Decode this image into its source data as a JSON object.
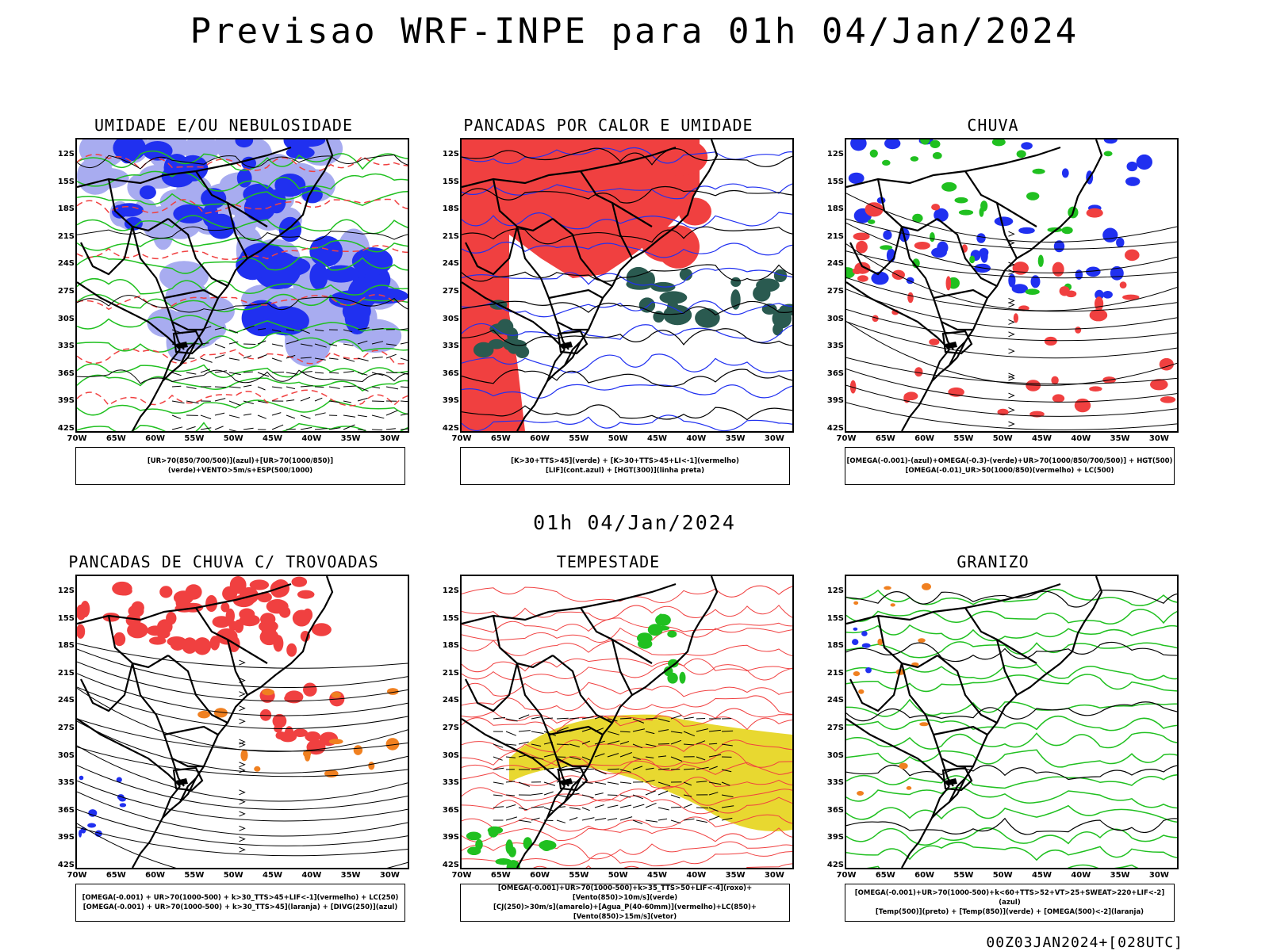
{
  "main_title": "Previsao WRF-INPE  para 01h 04/Jan/2024",
  "mid_title": "01h 04/Jan/2024",
  "footer_stamp": "00Z03JAN2024+[028UTC]",
  "axis": {
    "lat_ticks": [
      "12S",
      "15S",
      "18S",
      "21S",
      "24S",
      "27S",
      "30S",
      "33S",
      "36S",
      "39S",
      "42S"
    ],
    "lon_ticks": [
      "70W",
      "65W",
      "60W",
      "55W",
      "50W",
      "45W",
      "40W",
      "35W",
      "30W"
    ]
  },
  "colors": {
    "red": "#f04040",
    "green": "#20c020",
    "blue": "#2030f0",
    "lightblue": "#a8acf0",
    "orange": "#f08020",
    "yellow": "#e8d830",
    "darkgreen": "#2a5a50"
  },
  "panels": [
    {
      "title": "UMIDADE E/OU NEBULOSIDADE",
      "legend": [
        "[UR>70(850/700/500)](azul)+[UR>70(1000/850)](verde)+VENTO>5m/s+ESP(500/1000)"
      ]
    },
    {
      "title": "PANCADAS POR CALOR E UMIDADE",
      "legend": [
        "[K>30+TTS>45](verde) + [K>30+TTS>45+LI<-1](vermelho)",
        "[LIF](cont.azul) + [HGT(300)](linha preta)"
      ]
    },
    {
      "title": "CHUVA",
      "legend": [
        "[OMEGA(-0.001)-(azul)+OMEGA(-0.3)-(verde)+UR>70(1000/850/700/500)] + HGT(500)",
        "[OMEGA(-0.01)_UR>50(1000/850)(vermelho) + LC(500)"
      ]
    },
    {
      "title": "PANCADAS DE CHUVA C/ TROVOADAS",
      "legend": [
        "[OMEGA(-0.001) + UR>70(1000-500) + k>30_TTS>45+LIF<-1](vermelho) + LC(250)",
        "[OMEGA(-0.001) + UR>70(1000-500) + k>30_TTS>45](laranja) + [DIVG(250)](azul)"
      ]
    },
    {
      "title": "TEMPESTADE",
      "legend": [
        "[OMEGA(-0.001)+UR>70(1000-500)+k>35_TTS>50+LIF<-4](roxo)+[Vento(850)>10m/s](verde)",
        "[CJ(250)>30m/s](amarelo)+[Agua_P(40-60mm)](vermelho)+LC(850)+[Vento(850)>15m/s](vetor)"
      ]
    },
    {
      "title": "GRANIZO",
      "legend": [
        "[OMEGA(-0.001)+UR>70(1000-500)+k<60+TTS>52+VT>25+SWEAT>220+LIF<-2](azul)",
        "[Temp(500)](preto) + [Temp(850)](verde) + [OMEGA(500)<-2](laranja)"
      ]
    }
  ]
}
